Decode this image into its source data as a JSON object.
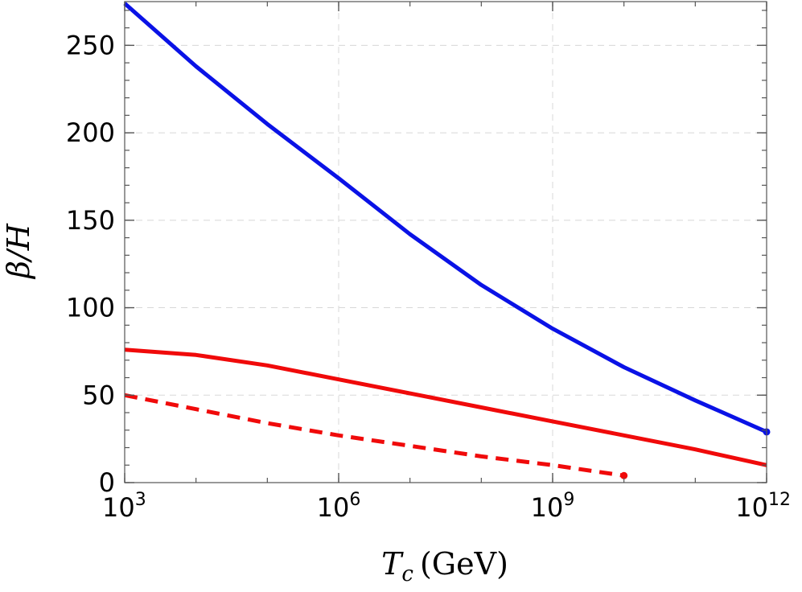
{
  "chart_data": {
    "type": "line",
    "xlabel": {
      "main": "T",
      "sub": "c",
      "unit": "(GeV)"
    },
    "ylabel": "β/H",
    "x_scale": "log",
    "xlim": [
      1000,
      1000000000000
    ],
    "ylim": [
      0,
      275
    ],
    "x_ticks": [
      {
        "value": 1000,
        "base": "10",
        "exp": "3"
      },
      {
        "value": 1000000,
        "base": "10",
        "exp": "6"
      },
      {
        "value": 1000000000,
        "base": "10",
        "exp": "9"
      },
      {
        "value": 1000000000000,
        "base": "10",
        "exp": "12"
      }
    ],
    "y_ticks": [
      {
        "value": 0,
        "label": "0"
      },
      {
        "value": 50,
        "label": "50"
      },
      {
        "value": 100,
        "label": "100"
      },
      {
        "value": 150,
        "label": "150"
      },
      {
        "value": 200,
        "label": "200"
      },
      {
        "value": 250,
        "label": "250"
      }
    ],
    "grid": true,
    "series": [
      {
        "color": "#0a12e6",
        "style": "solid",
        "end_marker": true,
        "x": [
          1000,
          10000,
          100000,
          1000000,
          10000000,
          100000000,
          1000000000,
          10000000000,
          100000000000,
          1000000000000
        ],
        "y": [
          274,
          238,
          205,
          174,
          142,
          113,
          88,
          66,
          47,
          29
        ]
      },
      {
        "color": "#f00a0a",
        "style": "solid",
        "end_marker": false,
        "x": [
          1000,
          10000,
          100000,
          1000000,
          10000000,
          100000000,
          1000000000,
          10000000000,
          100000000000,
          1000000000000
        ],
        "y": [
          76,
          73,
          67,
          59,
          51,
          43,
          35,
          27,
          19,
          10
        ]
      },
      {
        "color": "#f00a0a",
        "style": "dashed",
        "end_marker": true,
        "x": [
          1000,
          10000,
          100000,
          1000000,
          10000000,
          100000000,
          1000000000,
          10000000000
        ],
        "y": [
          50,
          42,
          34,
          27,
          21,
          15,
          10,
          4
        ]
      }
    ]
  }
}
